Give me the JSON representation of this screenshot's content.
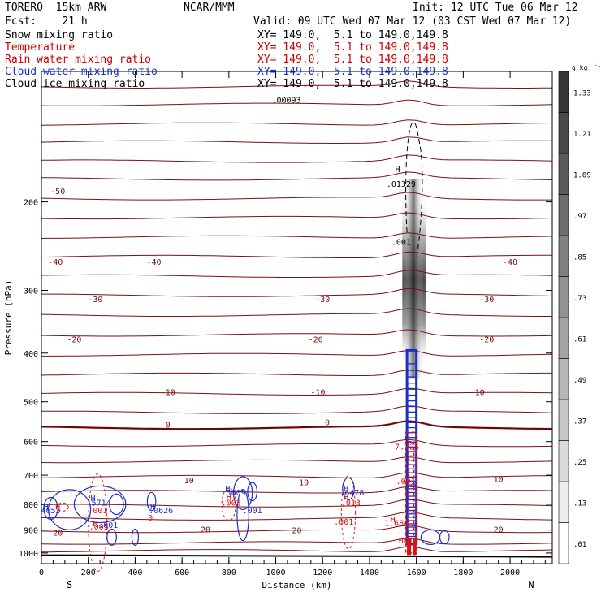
{
  "header": {
    "model": "TORERO  15km ARW",
    "center": "NCAR/MMM",
    "init": "Init: 12 UTC Tue 06 Mar 12",
    "fcst": "Fcst:    21 h",
    "valid": "Valid: 09 UTC Wed 07 Mar 12 (03 CST Wed 07 Mar 12)"
  },
  "legend": [
    {
      "label": "Snow mixing ratio",
      "xy": "XY= 149.0,  5.1 to 149.0,149.8",
      "color": "#000000"
    },
    {
      "label": "Temperature",
      "xy": "XY= 149.0,  5.1 to 149.0,149.8",
      "color": "#cc0000"
    },
    {
      "label": "Rain water mixing ratio",
      "xy": "XY= 149.0,  5.1 to 149.0,149.8",
      "color": "#cc0000"
    },
    {
      "label": "Cloud water mixing ratio",
      "xy": "XY= 149.0,  5.1 to 149.0,149.8",
      "color": "#1a2fc8"
    },
    {
      "label": "Cloud ice mixing ratio",
      "xy": "XY= 149.0,  5.1 to 149.0,149.8",
      "color": "#000000"
    }
  ],
  "colors": {
    "temperature": "#7a1010",
    "temperature_zero": "#6a0808",
    "rain": "#e01010",
    "cloud_water": "#1a2fc8",
    "cloud_ice": "#000000",
    "axis": "#000000"
  },
  "chart_data": {
    "type": "cross-section",
    "xlabel": "Distance (km)",
    "ylabel": "Pressure (hPa)",
    "xlim": [
      0,
      2180
    ],
    "ylim": [
      1050,
      110
    ],
    "y_scale": "log",
    "x_ticks": [
      0,
      200,
      400,
      600,
      800,
      1000,
      1200,
      1400,
      1600,
      1800,
      2000
    ],
    "y_ticks": [
      200,
      300,
      400,
      500,
      600,
      700,
      800,
      900,
      1000
    ],
    "x_ends": {
      "left": "S",
      "right": "N"
    },
    "ground_level": 1010,
    "colorbar": {
      "unit": "g kg",
      "unit_exp": "-1",
      "levels": [
        0.01,
        0.13,
        0.25,
        0.37,
        0.49,
        0.61,
        0.73,
        0.85,
        0.97,
        1.09,
        1.21,
        1.33
      ],
      "labels": [
        ".01",
        ".13",
        ".25",
        ".37",
        ".49",
        ".61",
        ".73",
        ".85",
        ".97",
        "1.09",
        "1.21",
        "1.33"
      ]
    },
    "temperature_labels": [
      {
        "x": 70,
        "p": 190,
        "text": "-50"
      },
      {
        "x": 60,
        "p": 263,
        "text": "-40"
      },
      {
        "x": 480,
        "p": 263,
        "text": "-40"
      },
      {
        "x": 2000,
        "p": 263,
        "text": "-40"
      },
      {
        "x": 230,
        "p": 312,
        "text": "-30"
      },
      {
        "x": 1200,
        "p": 312,
        "text": "-30"
      },
      {
        "x": 1900,
        "p": 312,
        "text": "-30"
      },
      {
        "x": 140,
        "p": 375,
        "text": "-20"
      },
      {
        "x": 1170,
        "p": 375,
        "text": "-20"
      },
      {
        "x": 1900,
        "p": 375,
        "text": "-20"
      },
      {
        "x": 540,
        "p": 478,
        "text": "-10"
      },
      {
        "x": 1180,
        "p": 478,
        "text": "-10"
      },
      {
        "x": 1860,
        "p": 478,
        "text": "-10"
      },
      {
        "x": 540,
        "p": 555,
        "text": "0"
      },
      {
        "x": 1220,
        "p": 548,
        "text": "0"
      },
      {
        "x": 630,
        "p": 715,
        "text": "10"
      },
      {
        "x": 1120,
        "p": 722,
        "text": "10"
      },
      {
        "x": 1950,
        "p": 712,
        "text": "10"
      },
      {
        "x": 70,
        "p": 910,
        "text": "20"
      },
      {
        "x": 700,
        "p": 896,
        "text": "20"
      },
      {
        "x": 1090,
        "p": 900,
        "text": "20"
      },
      {
        "x": 1950,
        "p": 897,
        "text": "20"
      }
    ],
    "field_labels": [
      {
        "x": 1520,
        "p": 172,
        "text": "H",
        "series": "snow"
      },
      {
        "x": 1535,
        "p": 184,
        "text": ".01329",
        "series": "snow"
      },
      {
        "x": 1535,
        "p": 240,
        "text": ".001",
        "series": "snow"
      },
      {
        "x": 1045,
        "p": 125,
        "text": ".00093",
        "series": "ice"
      },
      {
        "x": 1560,
        "p": 613,
        "text": "7.725",
        "series": "rain"
      },
      {
        "x": 1555,
        "p": 718,
        "text": ".001",
        "series": "rain"
      },
      {
        "x": 1500,
        "p": 855,
        "text": "H",
        "series": "rain"
      },
      {
        "x": 1515,
        "p": 870,
        "text": "1.684",
        "series": "rain"
      },
      {
        "x": 1545,
        "p": 943,
        "text": ".001",
        "series": "rain"
      },
      {
        "x": 20,
        "p": 807,
        "text": "H",
        "series": "cloud"
      },
      {
        "x": 40,
        "p": 822,
        "text": "4653",
        "series": "cloud"
      },
      {
        "x": 70,
        "p": 807,
        "text": "H",
        "series": "rain"
      },
      {
        "x": 220,
        "p": 777,
        "text": "H",
        "series": "cloud"
      },
      {
        "x": 245,
        "p": 793,
        "text": ".5714",
        "series": "cloud"
      },
      {
        "x": 240,
        "p": 822,
        "text": ".001",
        "series": "rain"
      },
      {
        "x": 230,
        "p": 872,
        "text": "H",
        "series": "rain"
      },
      {
        "x": 245,
        "p": 885,
        "text": ".005",
        "series": "rain"
      },
      {
        "x": 285,
        "p": 878,
        "text": ".001",
        "series": "cloud"
      },
      {
        "x": 475,
        "p": 807,
        "text": "H",
        "series": "cloud"
      },
      {
        "x": 510,
        "p": 822,
        "text": ".0626",
        "series": "cloud"
      },
      {
        "x": 465,
        "p": 850,
        "text": "0",
        "series": "rain"
      },
      {
        "x": 795,
        "p": 743,
        "text": "H",
        "series": "cloud"
      },
      {
        "x": 820,
        "p": 757,
        "text": ".5609",
        "series": "cloud"
      },
      {
        "x": 800,
        "p": 772,
        "text": "H",
        "series": "rain"
      },
      {
        "x": 810,
        "p": 793,
        "text": ".003",
        "series": "rain"
      },
      {
        "x": 900,
        "p": 822,
        "text": ".001",
        "series": "cloud"
      },
      {
        "x": 1300,
        "p": 743,
        "text": "H",
        "series": "cloud"
      },
      {
        "x": 1325,
        "p": 757,
        "text": ".6478",
        "series": "cloud"
      },
      {
        "x": 1300,
        "p": 772,
        "text": "H",
        "series": "rain"
      },
      {
        "x": 1320,
        "p": 793,
        "text": ".013",
        "series": "rain"
      },
      {
        "x": 1290,
        "p": 865,
        "text": ".001",
        "series": "rain"
      }
    ]
  }
}
